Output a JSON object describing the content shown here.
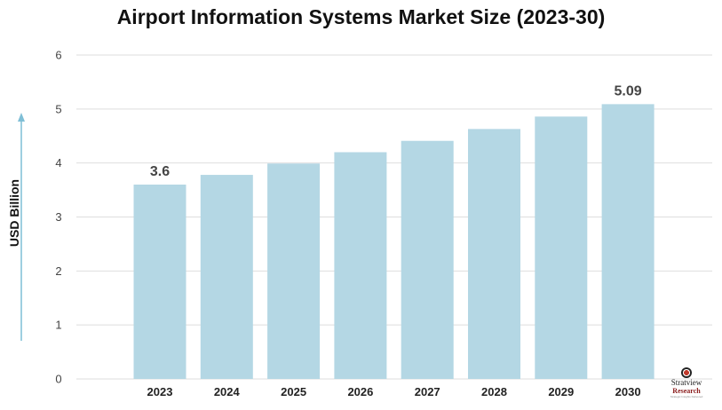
{
  "chart_data": {
    "type": "bar",
    "title": "Airport Information Systems Market Size (2023-30)",
    "ylabel": "USD Billion",
    "xlabel": "",
    "categories": [
      "2023",
      "2024",
      "2025",
      "2026",
      "2027",
      "2028",
      "2029",
      "2030"
    ],
    "values": [
      3.6,
      3.78,
      3.99,
      4.2,
      4.41,
      4.63,
      4.86,
      5.09
    ],
    "data_labels": [
      {
        "category": "2023",
        "text": "3.6"
      },
      {
        "category": "2030",
        "text": "5.09"
      }
    ],
    "ylim": [
      0,
      6
    ],
    "yticks": [
      "0",
      "1",
      "2",
      "3",
      "4",
      "5",
      "6"
    ],
    "grid": true,
    "bar_color": "#b4d7e4",
    "axis_arrow_color": "#7fbfd6"
  },
  "logo": {
    "name": "Stratview",
    "sub": "Research",
    "tagline": "Strategic Insights Delivered"
  }
}
